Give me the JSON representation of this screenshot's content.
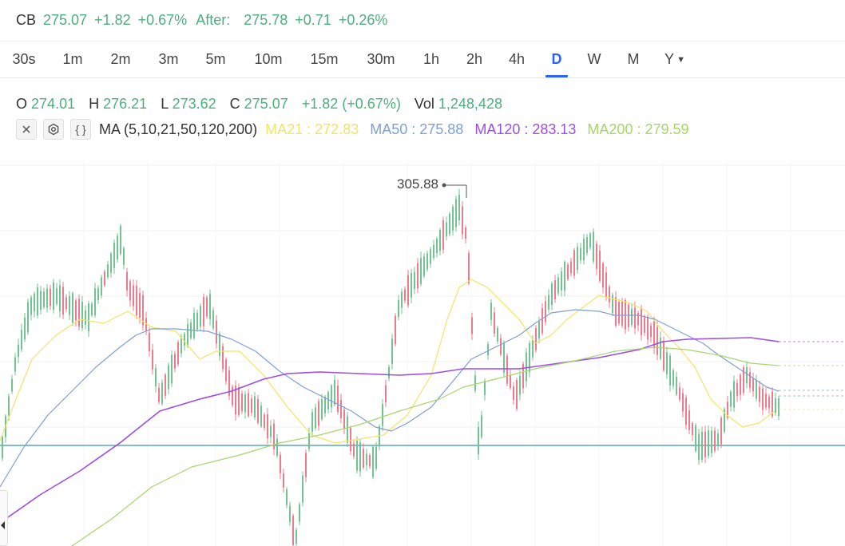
{
  "quote": {
    "symbol": "CB",
    "price": "275.07",
    "change": "+1.82",
    "change_pct": "+0.67%",
    "after_label": "After:",
    "after_price": "275.78",
    "after_change": "+0.71",
    "after_change_pct": "+0.26%"
  },
  "timeframes": [
    "30s",
    "1m",
    "2m",
    "3m",
    "5m",
    "10m",
    "15m",
    "30m",
    "1h",
    "2h",
    "4h",
    "D",
    "W",
    "M",
    "Y"
  ],
  "active_timeframe": "D",
  "ohlc": {
    "o_label": "O",
    "o": "274.01",
    "h_label": "H",
    "h": "276.21",
    "l_label": "L",
    "l": "273.62",
    "c_label": "C",
    "c": "275.07",
    "change": "+1.82 (+0.67%)",
    "vol_label": "Vol",
    "vol": "1,248,428"
  },
  "ma_legend": {
    "title": "MA (5,10,21,50,120,200)",
    "ma21": "MA21 : 272.83",
    "ma50": "MA50 : 275.88",
    "ma120": "MA120 : 283.13",
    "ma200": "MA200 : 279.59"
  },
  "chart_data": {
    "type": "candlestick",
    "high_marker_label": "305.88",
    "colors": {
      "up": "#72c391",
      "down": "#ec7b8d",
      "ma21": "#f2e467",
      "ma50": "#7d9fd8",
      "ma120": "#9b4dea",
      "ma200": "#a6d66b",
      "hline": "#5aa6b8"
    }
  },
  "colors": {
    "accent": "#2962ff",
    "positive": "#4caf7d"
  }
}
